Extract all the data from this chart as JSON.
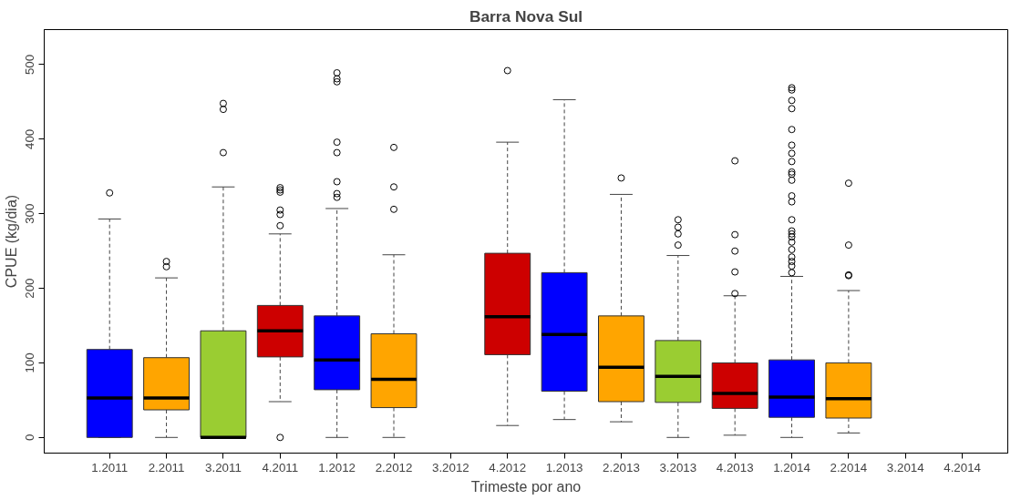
{
  "chart_data": {
    "type": "box",
    "title": "Barra Nova Sul",
    "xlabel": "Trimeste por ano",
    "ylabel": "CPUE (kg/dia)",
    "categories": [
      "1.2011",
      "2.2011",
      "3.2011",
      "4.2011",
      "1.2012",
      "2.2012",
      "3.2012",
      "4.2012",
      "1.2013",
      "2.2013",
      "3.2013",
      "4.2013",
      "1.2014",
      "2.2014",
      "3.2014",
      "4.2014"
    ],
    "colors": [
      "#0000ff",
      "#ffa500",
      "#9acd32",
      "#cd0000",
      "#0000ff",
      "#ffa500",
      "#9acd32",
      "#cd0000",
      "#0000ff",
      "#ffa500",
      "#9acd32",
      "#cd0000",
      "#0000ff",
      "#ffa500",
      "#9acd32",
      "#cd0000"
    ],
    "boxes": [
      {
        "low": 0,
        "q1": 0,
        "median": 53,
        "q3": 118,
        "high": 293,
        "outliers": [
          328
        ]
      },
      {
        "low": 0,
        "q1": 37,
        "median": 53,
        "q3": 107,
        "high": 214,
        "outliers": [
          229,
          236
        ]
      },
      {
        "low": 0,
        "q1": 0,
        "median": 0,
        "q3": 143,
        "high": 336,
        "outliers": [
          382,
          440,
          448
        ]
      },
      {
        "low": 48,
        "q1": 108,
        "median": 143,
        "q3": 177,
        "high": 273,
        "outliers": [
          0,
          284,
          299,
          305,
          329,
          332,
          335
        ]
      },
      {
        "low": 0,
        "q1": 64,
        "median": 104,
        "q3": 163,
        "high": 307,
        "outliers": [
          322,
          327,
          343,
          382,
          396,
          477,
          481,
          489
        ]
      },
      {
        "low": 0,
        "q1": 40,
        "median": 78,
        "q3": 139,
        "high": 245,
        "outliers": [
          306,
          336,
          389
        ]
      },
      null,
      {
        "low": 16,
        "q1": 111,
        "median": 162,
        "q3": 247,
        "high": 396,
        "outliers": [
          492
        ]
      },
      {
        "low": 24,
        "q1": 62,
        "median": 138,
        "q3": 221,
        "high": 453
      },
      {
        "low": 21,
        "q1": 48,
        "median": 94,
        "q3": 163,
        "high": 326,
        "outliers": [
          348
        ]
      },
      {
        "low": 0,
        "q1": 47,
        "median": 82,
        "q3": 130,
        "high": 244,
        "outliers": [
          258,
          273,
          282,
          292
        ]
      },
      {
        "low": 3,
        "q1": 39,
        "median": 59,
        "q3": 100,
        "high": 190,
        "outliers": [
          193,
          222,
          250,
          272,
          371
        ]
      },
      {
        "low": 0,
        "q1": 27,
        "median": 54,
        "q3": 104,
        "high": 216,
        "outliers": [
          221,
          230,
          236,
          242,
          252,
          262,
          269,
          273,
          277,
          292,
          316,
          324,
          345,
          353,
          356,
          370,
          381,
          392,
          413,
          441,
          452,
          466,
          469
        ]
      },
      {
        "low": 6,
        "q1": 26,
        "median": 52,
        "q3": 100,
        "high": 197,
        "outliers": [
          217,
          218,
          258,
          341
        ]
      },
      null,
      null
    ],
    "ylim": [
      -21,
      547
    ],
    "yticks": [
      0,
      100,
      200,
      300,
      400,
      500
    ],
    "grid": false
  }
}
